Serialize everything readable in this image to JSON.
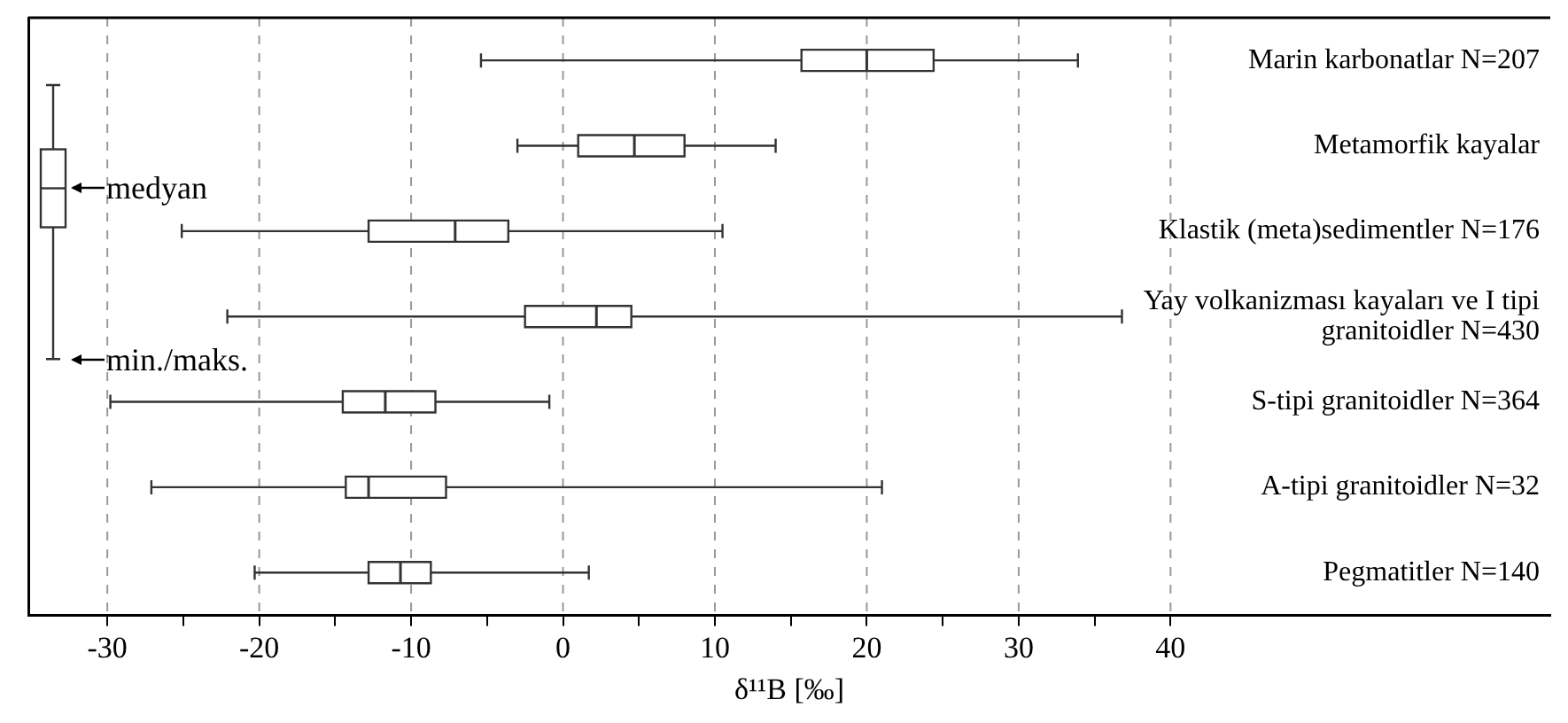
{
  "chart_data": {
    "type": "box",
    "orientation": "horizontal",
    "xlabel": "δ¹¹B [‰]",
    "color": "#333333",
    "categories": [
      "Marin karbonatlar N=207",
      "Metamorfik kayalar",
      "Klastik (meta)sedimentler N=176",
      "Yay volkanizması kayaları ve I tipi granitoidler N=430",
      "S-tipi granitoidler N=364",
      "A-tipi granitoidler N=32",
      "Pegmatitler N=140"
    ],
    "boxes": [
      {
        "low": -5.4,
        "q1": 15.7,
        "median": 20,
        "q3": 24.4,
        "high": 33.9
      },
      {
        "low": -3,
        "q1": 1,
        "median": 4.7,
        "q3": 8,
        "high": 14
      },
      {
        "low": -25.1,
        "q1": -12.8,
        "median": -7.1,
        "q3": -3.6,
        "high": 10.5
      },
      {
        "low": -22.1,
        "q1": -2.5,
        "median": 2.2,
        "q3": 4.5,
        "high": 36.8
      },
      {
        "low": -29.8,
        "q1": -14.5,
        "median": -11.7,
        "q3": -8.4,
        "high": -0.9
      },
      {
        "low": -27.1,
        "q1": -14.3,
        "median": -12.8,
        "q3": -7.7,
        "high": 21
      },
      {
        "low": -20.3,
        "q1": -12.8,
        "median": -10.7,
        "q3": -8.7,
        "high": 1.7
      }
    ],
    "xlim": [
      -35.2,
      65
    ],
    "xticks": [
      -30,
      {
        "value": -25,
        "label": null
      },
      -20,
      {
        "value": -15,
        "label": null
      },
      -10,
      {
        "value": -5,
        "label": null
      },
      0,
      {
        "value": 5,
        "label": null
      },
      10,
      {
        "value": 15,
        "label": null
      },
      20,
      {
        "value": 25,
        "label": null
      },
      30,
      {
        "value": 35,
        "label": null
      },
      40
    ],
    "grid": "x",
    "annotations": [
      "medyan",
      "min./maks."
    ]
  }
}
